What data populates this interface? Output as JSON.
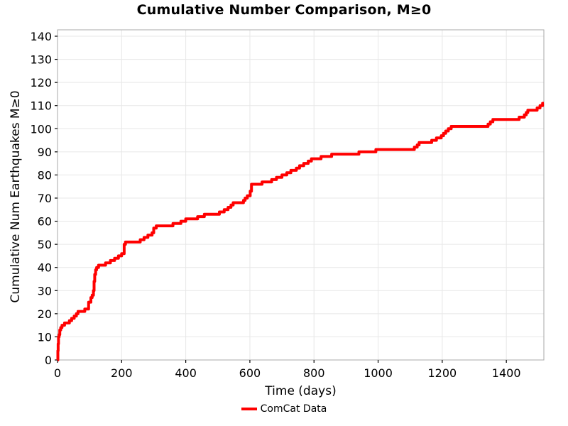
{
  "chart_data": {
    "type": "line",
    "title": "Cumulative Number Comparison, M≥0",
    "xlabel": "Time (days)",
    "ylabel": "Cumulative Num Earthquakes M≥0",
    "xlim": [
      0,
      1517
    ],
    "ylim": [
      0,
      140
    ],
    "xticks": [
      0,
      200,
      400,
      600,
      800,
      1000,
      1200,
      1400
    ],
    "yticks": [
      0,
      10,
      20,
      30,
      40,
      50,
      60,
      70,
      80,
      90,
      100,
      110,
      120,
      130,
      140
    ],
    "grid": true,
    "legend_position": "bottom-center",
    "colors": {
      "line": "#ff0000",
      "grid": "#e7e7e7",
      "border": "#aaaaaa",
      "tick": "#000000",
      "text": "#000000",
      "background": "#ffffff"
    },
    "series": [
      {
        "name": "ComCat Data",
        "color": "#ff0000",
        "style": "step-post",
        "points": [
          [
            0,
            0
          ],
          [
            1,
            4
          ],
          [
            2,
            7
          ],
          [
            3,
            10
          ],
          [
            5,
            11
          ],
          [
            7,
            13
          ],
          [
            10,
            14
          ],
          [
            14,
            15
          ],
          [
            22,
            16
          ],
          [
            37,
            17
          ],
          [
            44,
            18
          ],
          [
            52,
            19
          ],
          [
            59,
            20
          ],
          [
            64,
            21
          ],
          [
            85,
            22
          ],
          [
            97,
            25
          ],
          [
            104,
            27
          ],
          [
            108,
            28
          ],
          [
            112,
            30
          ],
          [
            114,
            34
          ],
          [
            116,
            37
          ],
          [
            119,
            39
          ],
          [
            122,
            40
          ],
          [
            128,
            41
          ],
          [
            150,
            42
          ],
          [
            165,
            43
          ],
          [
            178,
            44
          ],
          [
            190,
            45
          ],
          [
            200,
            46
          ],
          [
            208,
            50
          ],
          [
            212,
            51
          ],
          [
            258,
            52
          ],
          [
            270,
            53
          ],
          [
            282,
            54
          ],
          [
            295,
            55
          ],
          [
            300,
            57
          ],
          [
            308,
            58
          ],
          [
            360,
            59
          ],
          [
            385,
            60
          ],
          [
            400,
            61
          ],
          [
            437,
            62
          ],
          [
            458,
            63
          ],
          [
            505,
            64
          ],
          [
            520,
            65
          ],
          [
            532,
            66
          ],
          [
            541,
            67
          ],
          [
            548,
            68
          ],
          [
            580,
            69
          ],
          [
            585,
            70
          ],
          [
            592,
            71
          ],
          [
            601,
            73
          ],
          [
            605,
            76
          ],
          [
            638,
            77
          ],
          [
            668,
            78
          ],
          [
            683,
            79
          ],
          [
            700,
            80
          ],
          [
            715,
            81
          ],
          [
            728,
            82
          ],
          [
            745,
            83
          ],
          [
            755,
            84
          ],
          [
            768,
            85
          ],
          [
            782,
            86
          ],
          [
            792,
            87
          ],
          [
            822,
            88
          ],
          [
            855,
            89
          ],
          [
            940,
            90
          ],
          [
            993,
            91
          ],
          [
            1113,
            92
          ],
          [
            1122,
            93
          ],
          [
            1128,
            94
          ],
          [
            1167,
            95
          ],
          [
            1182,
            96
          ],
          [
            1197,
            97
          ],
          [
            1204,
            98
          ],
          [
            1211,
            99
          ],
          [
            1219,
            100
          ],
          [
            1228,
            101
          ],
          [
            1343,
            102
          ],
          [
            1350,
            103
          ],
          [
            1358,
            104
          ],
          [
            1440,
            105
          ],
          [
            1456,
            106
          ],
          [
            1462,
            107
          ],
          [
            1467,
            108
          ],
          [
            1496,
            109
          ],
          [
            1505,
            110
          ],
          [
            1513,
            111
          ]
        ]
      }
    ]
  }
}
